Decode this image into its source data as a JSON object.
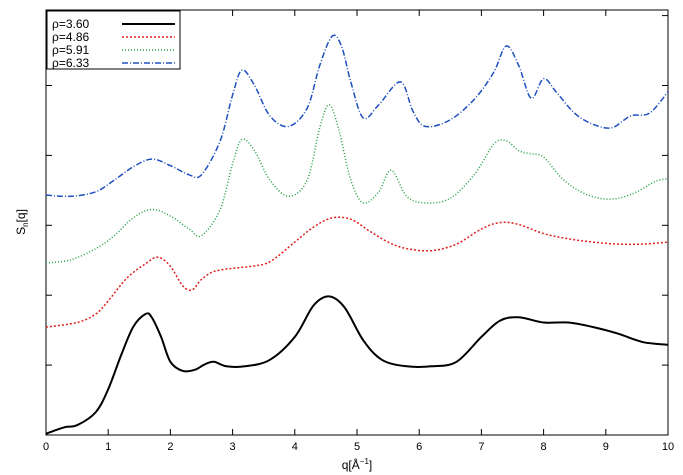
{
  "chart_data": {
    "type": "line",
    "title": "",
    "xlabel": "q[Å",
    "xlabel_sup": "−1",
    "xlabel_end": "]",
    "ylabel": "S",
    "ylabel_sub": "n",
    "ylabel_end": "[q]",
    "xlim": [
      0,
      10
    ],
    "xticks": [
      "0",
      "1",
      "2",
      "3",
      "4",
      "5",
      "6",
      "7",
      "8",
      "9",
      "10"
    ],
    "ylim": [
      0,
      6.5
    ],
    "yticks_shown": false,
    "grid": false,
    "legend_position": "top-left",
    "series": [
      {
        "name": "ρ=3.60",
        "color": "#000000",
        "dash": "solid",
        "x": [
          0,
          0.3,
          0.5,
          0.8,
          1.0,
          1.2,
          1.4,
          1.6,
          1.7,
          1.85,
          2.0,
          2.2,
          2.4,
          2.55,
          2.7,
          2.9,
          3.2,
          3.6,
          4.0,
          4.3,
          4.55,
          4.8,
          5.1,
          5.4,
          5.8,
          6.2,
          6.6,
          7.0,
          7.3,
          7.6,
          8.0,
          8.4,
          8.8,
          9.2,
          9.6,
          10.0
        ],
        "y": [
          0.02,
          0.12,
          0.15,
          0.35,
          0.7,
          1.2,
          1.65,
          1.85,
          1.8,
          1.5,
          1.12,
          0.98,
          1.0,
          1.08,
          1.12,
          1.05,
          1.05,
          1.15,
          1.5,
          1.98,
          2.12,
          1.95,
          1.45,
          1.15,
          1.05,
          1.05,
          1.12,
          1.5,
          1.75,
          1.8,
          1.72,
          1.72,
          1.65,
          1.55,
          1.42,
          1.38
        ]
      },
      {
        "name": "ρ=4.86",
        "color": "#e02020",
        "dash": "2,2",
        "x": [
          0,
          0.5,
          0.8,
          1.0,
          1.3,
          1.6,
          1.8,
          2.0,
          2.2,
          2.35,
          2.5,
          2.7,
          3.0,
          3.3,
          3.6,
          4.0,
          4.3,
          4.6,
          4.9,
          5.2,
          5.5,
          5.8,
          6.2,
          6.6,
          7.0,
          7.3,
          7.6,
          8.0,
          8.4,
          8.8,
          9.2,
          9.6,
          10.0
        ],
        "y": [
          1.65,
          1.72,
          1.85,
          2.05,
          2.4,
          2.62,
          2.72,
          2.58,
          2.28,
          2.22,
          2.38,
          2.5,
          2.55,
          2.58,
          2.65,
          2.95,
          3.18,
          3.32,
          3.3,
          3.12,
          2.95,
          2.85,
          2.82,
          2.92,
          3.15,
          3.25,
          3.22,
          3.08,
          3.0,
          2.95,
          2.92,
          2.92,
          2.95
        ]
      },
      {
        "name": "ρ=5.91",
        "color": "#20a040",
        "dash": "1,2",
        "x": [
          0,
          0.4,
          0.8,
          1.1,
          1.4,
          1.7,
          2.0,
          2.3,
          2.5,
          2.8,
          3.0,
          3.15,
          3.35,
          3.6,
          3.9,
          4.2,
          4.4,
          4.55,
          4.7,
          4.9,
          5.1,
          5.35,
          5.55,
          5.8,
          6.1,
          6.5,
          6.9,
          7.2,
          7.4,
          7.6,
          7.8,
          8.0,
          8.3,
          8.6,
          8.9,
          9.2,
          9.5,
          9.8,
          10.0
        ],
        "y": [
          2.63,
          2.68,
          2.85,
          3.05,
          3.32,
          3.45,
          3.35,
          3.15,
          3.05,
          3.45,
          4.15,
          4.52,
          4.35,
          3.9,
          3.65,
          3.9,
          4.7,
          5.05,
          4.7,
          3.9,
          3.55,
          3.72,
          4.05,
          3.65,
          3.55,
          3.62,
          4.0,
          4.45,
          4.5,
          4.35,
          4.3,
          4.25,
          3.92,
          3.72,
          3.62,
          3.62,
          3.72,
          3.88,
          3.92
        ]
      },
      {
        "name": "ρ=6.33",
        "color": "#2050c0",
        "dash": "6,2,1,2",
        "x": [
          0,
          0.4,
          0.8,
          1.1,
          1.4,
          1.7,
          2.0,
          2.3,
          2.5,
          2.8,
          3.0,
          3.15,
          3.35,
          3.6,
          3.9,
          4.2,
          4.4,
          4.6,
          4.75,
          4.9,
          5.1,
          5.35,
          5.7,
          5.9,
          6.1,
          6.5,
          6.9,
          7.2,
          7.4,
          7.6,
          7.8,
          8.0,
          8.2,
          8.5,
          8.8,
          9.1,
          9.4,
          9.7,
          10.0
        ],
        "y": [
          3.67,
          3.65,
          3.72,
          3.9,
          4.1,
          4.22,
          4.12,
          3.98,
          3.98,
          4.5,
          5.2,
          5.58,
          5.35,
          4.88,
          4.72,
          5.0,
          5.65,
          6.1,
          5.95,
          5.4,
          4.85,
          5.05,
          5.4,
          4.95,
          4.72,
          4.82,
          5.15,
          5.55,
          5.95,
          5.65,
          5.15,
          5.45,
          5.25,
          4.92,
          4.75,
          4.7,
          4.88,
          4.92,
          5.25
        ]
      }
    ]
  }
}
